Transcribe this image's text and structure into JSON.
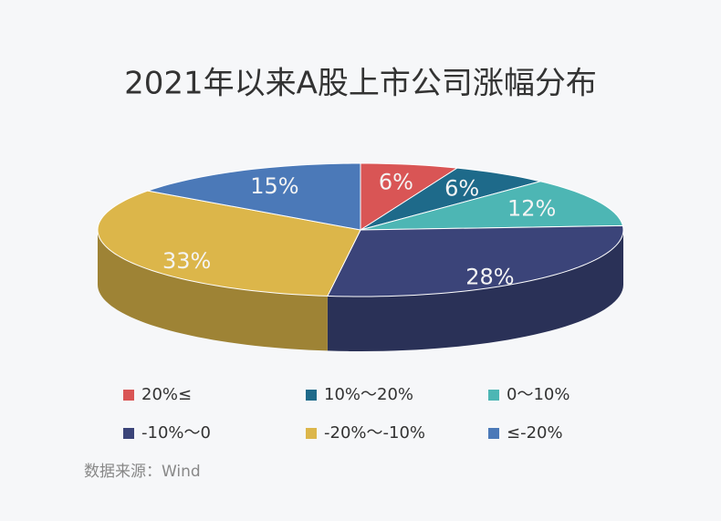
{
  "chart_data": {
    "type": "pie3d",
    "title": "2021年以来A股上市公司涨幅分布",
    "categories": [
      "20%≤",
      "10%～20%",
      "0～10%",
      "-10%～0",
      "-20%～-10%",
      "≤-20%"
    ],
    "values": [
      6,
      6,
      12,
      28,
      33,
      15
    ],
    "value_labels": [
      "6%",
      "6%",
      "12%",
      "28%",
      "33%",
      "15%"
    ],
    "colors": [
      "#d95555",
      "#1e6a8a",
      "#4db6b4",
      "#3b4479",
      "#dcb64a",
      "#4b79b8"
    ],
    "source": "数据来源：Wind"
  }
}
